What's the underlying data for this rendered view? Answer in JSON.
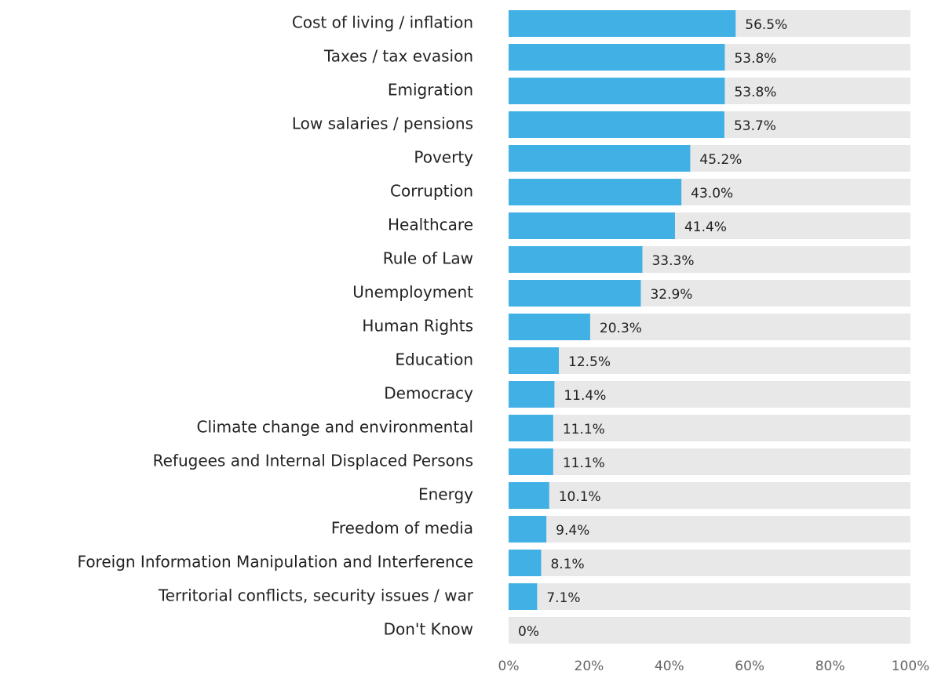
{
  "chart_data": {
    "type": "barh",
    "categories": [
      "Cost of living / inflation",
      "Taxes / tax evasion",
      "Emigration",
      "Low salaries / pensions",
      "Poverty",
      "Corruption",
      "Healthcare",
      "Rule of Law",
      "Unemployment",
      "Human Rights",
      "Education",
      "Democracy",
      "Climate change and environmental",
      "Refugees and Internal Displaced Persons",
      "Energy",
      "Freedom of media",
      "Foreign Information Manipulation and Interference",
      "Territorial conflicts, security issues / war",
      "Don't Know"
    ],
    "values": [
      56.5,
      53.8,
      53.8,
      53.7,
      45.2,
      43.0,
      41.4,
      33.3,
      32.9,
      20.3,
      12.5,
      11.4,
      11.1,
      11.1,
      10.1,
      9.4,
      8.1,
      7.1,
      0
    ],
    "value_labels": [
      "56.5%",
      "53.8%",
      "53.8%",
      "53.7%",
      "45.2%",
      "43.0%",
      "41.4%",
      "33.3%",
      "32.9%",
      "20.3%",
      "12.5%",
      "11.4%",
      "11.1%",
      "11.1%",
      "10.1%",
      "9.4%",
      "8.1%",
      "7.1%",
      "0%"
    ],
    "color": "#41b0e4",
    "xlim": [
      0,
      100
    ],
    "xticks": [
      {
        "value": 0,
        "label": "0%"
      },
      {
        "value": 20,
        "label": "20%"
      },
      {
        "value": 40,
        "label": "40%"
      },
      {
        "value": 60,
        "label": "60%"
      },
      {
        "value": 80,
        "label": "80%"
      },
      {
        "value": 100,
        "label": "100%"
      }
    ]
  }
}
